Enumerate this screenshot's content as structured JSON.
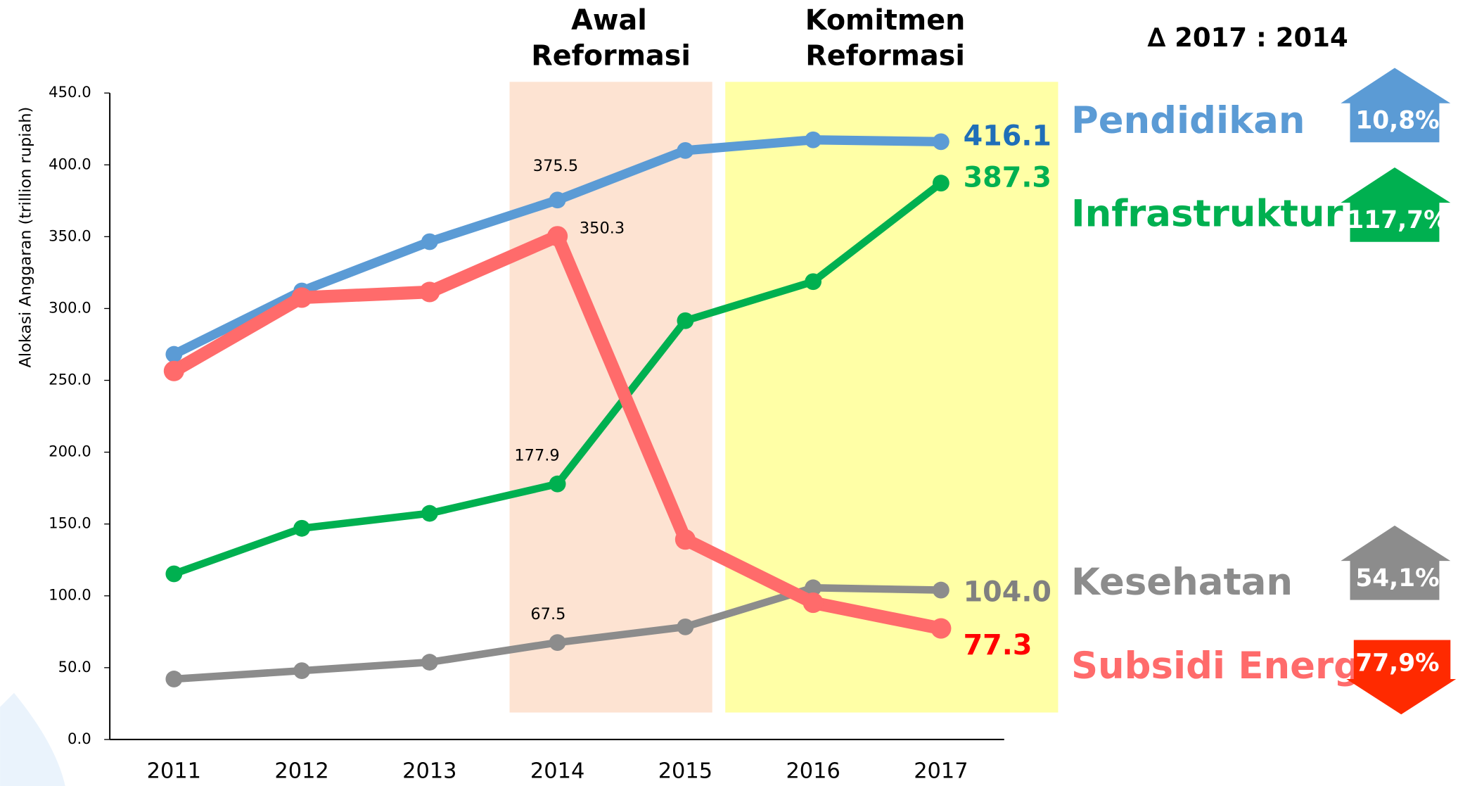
{
  "chart_data": {
    "type": "line",
    "ylabel": "Alokasi Anggaran (trillion rupiah)",
    "categories": [
      "2011",
      "2012",
      "2013",
      "2014",
      "2015",
      "2016",
      "2017"
    ],
    "ylim": [
      0,
      450
    ],
    "yticks": [
      {
        "value": 0,
        "label": "0.0"
      },
      {
        "value": 50,
        "label": "50.0"
      },
      {
        "value": 100,
        "label": "100.0"
      },
      {
        "value": 150,
        "label": "150.0"
      },
      {
        "value": 200,
        "label": "200.0"
      },
      {
        "value": 250,
        "label": "250.0"
      },
      {
        "value": 300,
        "label": "300.0"
      },
      {
        "value": 350,
        "label": "350.0"
      },
      {
        "value": 400,
        "label": "400.0"
      },
      {
        "value": 450,
        "label": "450.0"
      }
    ],
    "annotations": [
      {
        "lines": [
          "Awal",
          "Reformasi"
        ]
      },
      {
        "lines": [
          "Komitmen",
          "Reformasi"
        ]
      }
    ],
    "comparison_title": "∆ 2017 : 2014",
    "series": [
      {
        "name": "Pendidikan",
        "color": "#5b9bd5",
        "label_color": "#1f6fb8",
        "values": [
          268.1,
          312.2,
          346.5,
          375.5,
          410.0,
          417.4,
          416.1
        ],
        "value_labels": [
          null,
          null,
          null,
          "375.5",
          null,
          null,
          "416.1"
        ],
        "change": "10,8%",
        "change_direction": "up"
      },
      {
        "name": "Infrastruktur",
        "color": "#00b050",
        "label_color": "#00b050",
        "values": [
          115.3,
          147.0,
          157.4,
          177.9,
          291.5,
          318.7,
          387.3
        ],
        "value_labels": [
          null,
          null,
          null,
          "177.9",
          null,
          null,
          "387.3"
        ],
        "change": "117,7%",
        "change_direction": "up"
      },
      {
        "name": "Kesehatan",
        "color": "#8c8c8c",
        "label_color": "#808080",
        "values": [
          42.1,
          47.9,
          53.8,
          67.5,
          78.4,
          105.6,
          104.0
        ],
        "value_labels": [
          null,
          null,
          null,
          "67.5",
          null,
          null,
          "104.0"
        ],
        "change": "54,1%",
        "change_direction": "up"
      },
      {
        "name": "Subsidi Energi",
        "color": "#ff6b6b",
        "label_color": "#ff0000",
        "values": [
          256.5,
          307.6,
          311.5,
          350.3,
          139.2,
          95.2,
          77.3
        ],
        "value_labels": [
          null,
          null,
          null,
          "350.3",
          null,
          null,
          "77.3"
        ],
        "change": "77,9%",
        "change_direction": "down",
        "change_color": "#ff2a00"
      }
    ]
  }
}
